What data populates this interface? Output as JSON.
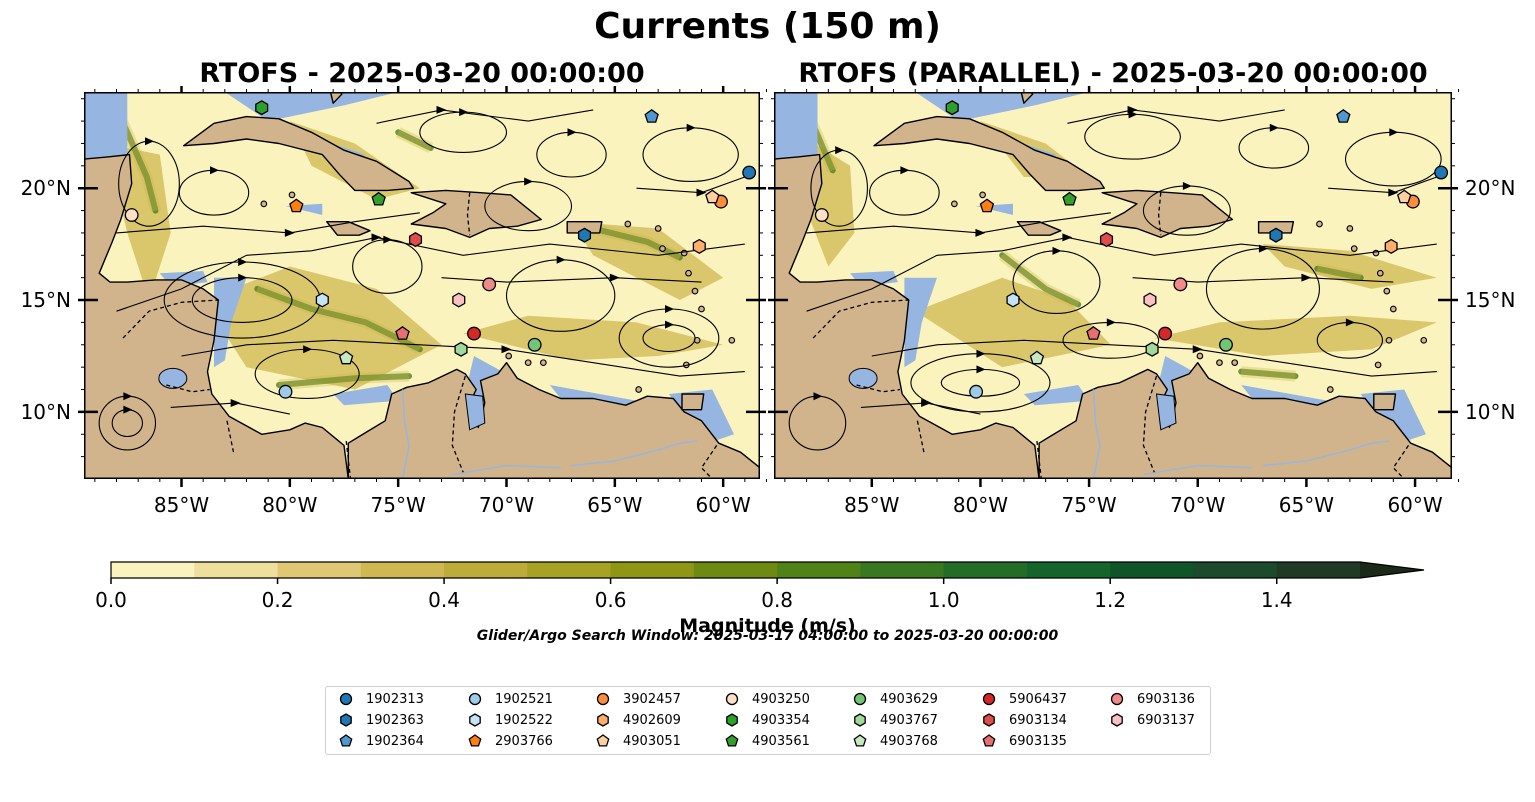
{
  "title": "Currents (150 m)",
  "panels": [
    {
      "title": "RTOFS - 2025-03-20 00:00:00"
    },
    {
      "title": "RTOFS (PARALLEL) - 2025-03-20 00:00:00"
    }
  ],
  "colors": {
    "land": "#d2b48c",
    "ocean_shallow": "#96b5e0",
    "ocean_base": "#fbf3bd",
    "coast": "#000000",
    "rivers": "#9ab6d6"
  },
  "chart_data": {
    "type": "map",
    "xlim": [
      -89.5,
      -58.3
    ],
    "ylim": [
      7.0,
      24.3
    ],
    "xticks": [
      -85,
      -80,
      -75,
      -70,
      -65,
      -60
    ],
    "xtick_labels": [
      "85°W",
      "80°W",
      "75°W",
      "70°W",
      "65°W",
      "60°W"
    ],
    "yticks": [
      10,
      15,
      20
    ],
    "ytick_labels": [
      "10°N",
      "15°N",
      "20°N"
    ],
    "colorbar": {
      "label": "Magnitude (m/s)",
      "min": 0.0,
      "max": 1.5,
      "extend": "max",
      "ticks": [
        0.0,
        0.2,
        0.4,
        0.6,
        0.8,
        1.0,
        1.2,
        1.4
      ],
      "tick_labels": [
        "0.0",
        "0.2",
        "0.4",
        "0.6",
        "0.8",
        "1.0",
        "1.2",
        "1.4"
      ],
      "colors": [
        "#fbf3bd",
        "#efdf9c",
        "#e0c774",
        "#cfb851",
        "#bdab3a",
        "#a7a124",
        "#8e9614",
        "#6e8a12",
        "#508218",
        "#387820",
        "#236d28",
        "#15642c",
        "#0f5528",
        "#1b4a2c",
        "#213a25",
        "#1b2a18"
      ]
    },
    "search_window": "Glider/Argo Search Window: 2025-03-17 04:00:00 to 2025-03-20 00:00:00",
    "floats": [
      {
        "id": "1902313",
        "marker": "circle",
        "color": "#1f77b4",
        "lon": -58.8,
        "lat": 20.7
      },
      {
        "id": "1902363",
        "marker": "hexagon",
        "color": "#1f77b4",
        "lon": -66.4,
        "lat": 17.9
      },
      {
        "id": "1902364",
        "marker": "pentagon",
        "color": "#4e97cf",
        "lon": -63.3,
        "lat": 23.2
      },
      {
        "id": "1902521",
        "marker": "circle",
        "color": "#9ecae9",
        "lon": -80.2,
        "lat": 10.9
      },
      {
        "id": "1902522",
        "marker": "hexagon",
        "color": "#c6e2f5",
        "lon": -78.5,
        "lat": 15.0
      },
      {
        "id": "2903766",
        "marker": "pentagon",
        "color": "#ff7f0e",
        "lon": -79.7,
        "lat": 19.2
      },
      {
        "id": "3902457",
        "marker": "circle",
        "color": "#fd8d3c",
        "lon": -60.1,
        "lat": 19.4
      },
      {
        "id": "4902609",
        "marker": "hexagon",
        "color": "#fdae6b",
        "lon": -61.1,
        "lat": 17.4
      },
      {
        "id": "4903051",
        "marker": "pentagon",
        "color": "#fdd0a2",
        "lon": -60.5,
        "lat": 19.6
      },
      {
        "id": "4903250",
        "marker": "circle",
        "color": "#fde0c5",
        "lon": -87.3,
        "lat": 18.8
      },
      {
        "id": "4903354",
        "marker": "hexagon",
        "color": "#2ca02c",
        "lon": -81.3,
        "lat": 23.6
      },
      {
        "id": "4903561",
        "marker": "pentagon",
        "color": "#33a02c",
        "lon": -75.9,
        "lat": 19.5
      },
      {
        "id": "4903629",
        "marker": "circle",
        "color": "#74c476",
        "lon": -68.7,
        "lat": 13.0
      },
      {
        "id": "4903767",
        "marker": "hexagon",
        "color": "#a1d99b",
        "lon": -72.1,
        "lat": 12.8
      },
      {
        "id": "4903768",
        "marker": "pentagon",
        "color": "#c7e9c0",
        "lon": -77.4,
        "lat": 12.4
      },
      {
        "id": "5906437",
        "marker": "circle",
        "color": "#d62728",
        "lon": -71.5,
        "lat": 13.5
      },
      {
        "id": "6903134",
        "marker": "hexagon",
        "color": "#de4c4c",
        "lon": -74.2,
        "lat": 17.7
      },
      {
        "id": "6903135",
        "marker": "pentagon",
        "color": "#e86f6f",
        "lon": -74.8,
        "lat": 13.5
      },
      {
        "id": "6903136",
        "marker": "circle",
        "color": "#f08a8a",
        "lon": -70.8,
        "lat": 15.7
      },
      {
        "id": "6903137",
        "marker": "hexagon",
        "color": "#f9c1c1",
        "lon": -72.2,
        "lat": 15.0
      }
    ]
  }
}
